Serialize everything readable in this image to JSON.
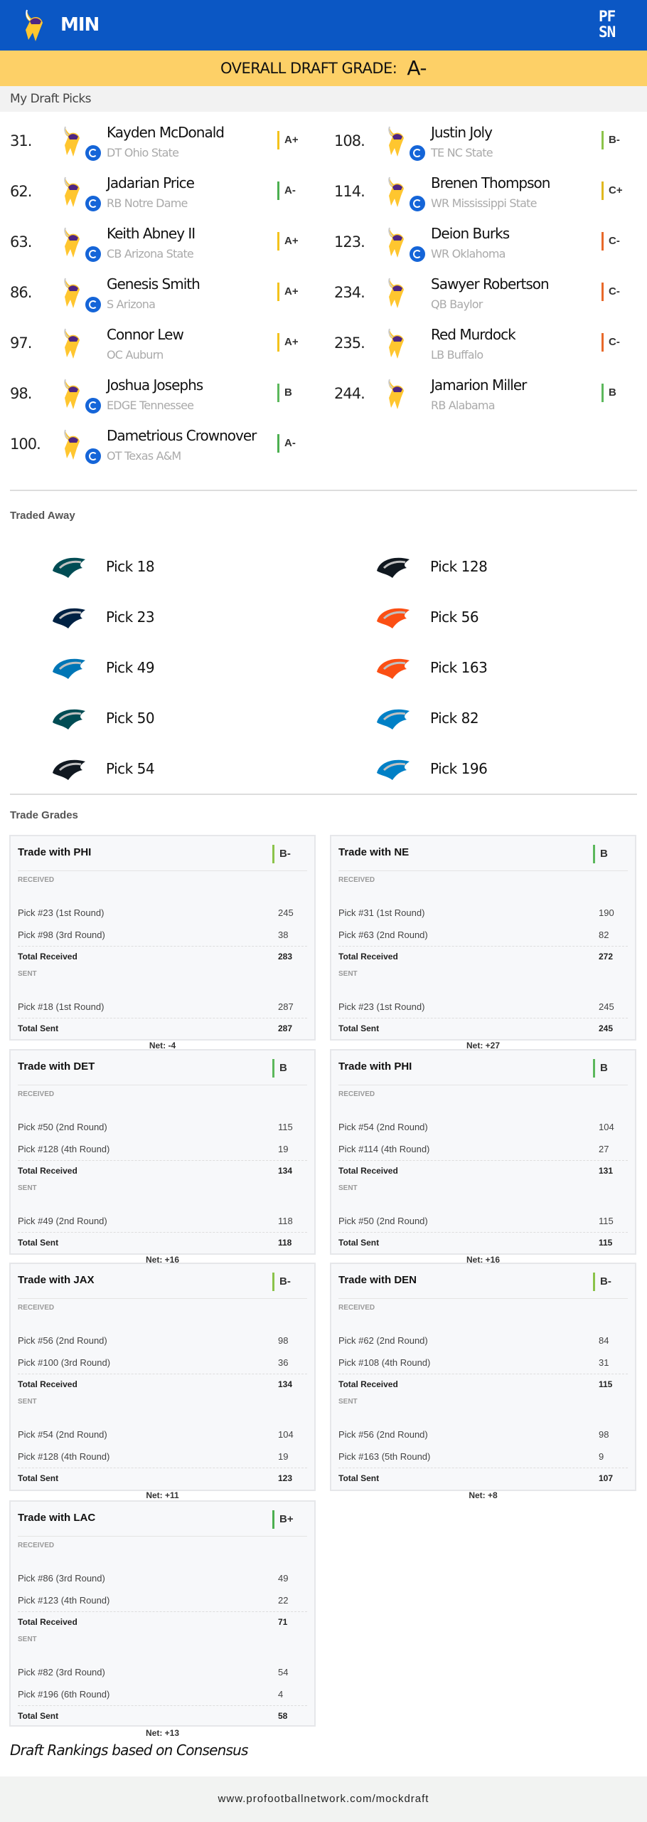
{
  "header": {
    "team": "MIN",
    "brand": "PFSN",
    "team_logo": "vikings-logo-icon"
  },
  "overall": {
    "label": "OVERALL DRAFT GRADE:",
    "grade": "A-"
  },
  "picks_section": {
    "title": "My Draft Picks"
  },
  "grade_colors": {
    "A+": "#f4c21b",
    "A-": "#4caf50",
    "B": "#5cb85c",
    "B-": "#8bc34a",
    "B+": "#4caf50",
    "C+": "#e0b81f",
    "C-": "#e8692a"
  },
  "picks": [
    {
      "num": "31.",
      "name": "Kayden McDonald",
      "sub": "DT Ohio State",
      "grade": "A+",
      "traded": true
    },
    {
      "num": "62.",
      "name": "Jadarian Price",
      "sub": "RB Notre Dame",
      "grade": "A-",
      "traded": true
    },
    {
      "num": "63.",
      "name": "Keith Abney II",
      "sub": "CB Arizona State",
      "grade": "A+",
      "traded": true
    },
    {
      "num": "86.",
      "name": "Genesis Smith",
      "sub": "S Arizona",
      "grade": "A+",
      "traded": true
    },
    {
      "num": "97.",
      "name": "Connor Lew",
      "sub": "OC Auburn",
      "grade": "A+",
      "traded": false
    },
    {
      "num": "98.",
      "name": "Joshua Josephs",
      "sub": "EDGE Tennessee",
      "grade": "B",
      "traded": true
    },
    {
      "num": "100.",
      "name": "Dametrious Crownover",
      "sub": "OT Texas A&M",
      "grade": "A-",
      "traded": true
    },
    {
      "num": "108.",
      "name": "Justin Joly",
      "sub": "TE NC State",
      "grade": "B-",
      "traded": true
    },
    {
      "num": "114.",
      "name": "Brenen Thompson",
      "sub": "WR Mississippi State",
      "grade": "C+",
      "traded": true
    },
    {
      "num": "123.",
      "name": "Deion Burks",
      "sub": "WR Oklahoma",
      "grade": "C-",
      "traded": true
    },
    {
      "num": "234.",
      "name": "Sawyer Robertson",
      "sub": "QB Baylor",
      "grade": "C-",
      "traded": false
    },
    {
      "num": "235.",
      "name": "Red Murdock",
      "sub": "LB Buffalo",
      "grade": "C-",
      "traded": false
    },
    {
      "num": "244.",
      "name": "Jamarion Miller",
      "sub": "RB Alabama",
      "grade": "B",
      "traded": false
    }
  ],
  "traded_section": {
    "title": "Traded Away"
  },
  "traded_away": [
    {
      "team": "PHI",
      "label": "Pick 18",
      "color": "#004c54"
    },
    {
      "team": "NE",
      "label": "Pick 23",
      "color": "#002244"
    },
    {
      "team": "DET",
      "label": "Pick 49",
      "color": "#0076b6"
    },
    {
      "team": "PHI",
      "label": "Pick 50",
      "color": "#004c54"
    },
    {
      "team": "JAX",
      "label": "Pick 54",
      "color": "#101820"
    },
    {
      "team": "JAX",
      "label": "Pick 128",
      "color": "#101820"
    },
    {
      "team": "DEN",
      "label": "Pick 56",
      "color": "#fb4f14"
    },
    {
      "team": "DEN",
      "label": "Pick 163",
      "color": "#fb4f14"
    },
    {
      "team": "LAC",
      "label": "Pick 82",
      "color": "#0080c6"
    },
    {
      "team": "LAC",
      "label": "Pick 196",
      "color": "#0080c6"
    }
  ],
  "trades_section": {
    "title": "Trade Grades"
  },
  "trade_labels": {
    "received": "RECEIVED",
    "sent": "SENT",
    "total_received": "Total Received",
    "total_sent": "Total Sent"
  },
  "trades": [
    {
      "title": "Trade with PHI",
      "grade": "B-",
      "received": [
        [
          "Pick #23 (1st Round)",
          "245"
        ],
        [
          "Pick #98 (3rd Round)",
          "38"
        ]
      ],
      "total_received": "283",
      "sent": [
        [
          "Pick #18 (1st Round)",
          "287"
        ]
      ],
      "total_sent": "287",
      "net": "Net: -4"
    },
    {
      "title": "Trade with NE",
      "grade": "B",
      "received": [
        [
          "Pick #31 (1st Round)",
          "190"
        ],
        [
          "Pick #63 (2nd Round)",
          "82"
        ]
      ],
      "total_received": "272",
      "sent": [
        [
          "Pick #23 (1st Round)",
          "245"
        ]
      ],
      "total_sent": "245",
      "net": "Net: +27"
    },
    {
      "title": "Trade with DET",
      "grade": "B",
      "received": [
        [
          "Pick #50 (2nd Round)",
          "115"
        ],
        [
          "Pick #128 (4th Round)",
          "19"
        ]
      ],
      "total_received": "134",
      "sent": [
        [
          "Pick #49 (2nd Round)",
          "118"
        ]
      ],
      "total_sent": "118",
      "net": "Net: +16"
    },
    {
      "title": "Trade with PHI",
      "grade": "B",
      "received": [
        [
          "Pick #54 (2nd Round)",
          "104"
        ],
        [
          "Pick #114 (4th Round)",
          "27"
        ]
      ],
      "total_received": "131",
      "sent": [
        [
          "Pick #50 (2nd Round)",
          "115"
        ]
      ],
      "total_sent": "115",
      "net": "Net: +16"
    },
    {
      "title": "Trade with JAX",
      "grade": "B-",
      "received": [
        [
          "Pick #56 (2nd Round)",
          "98"
        ],
        [
          "Pick #100 (3rd Round)",
          "36"
        ]
      ],
      "total_received": "134",
      "sent": [
        [
          "Pick #54 (2nd Round)",
          "104"
        ],
        [
          "Pick #128 (4th Round)",
          "19"
        ]
      ],
      "total_sent": "123",
      "net": "Net: +11"
    },
    {
      "title": "Trade with DEN",
      "grade": "B-",
      "received": [
        [
          "Pick #62 (2nd Round)",
          "84"
        ],
        [
          "Pick #108 (4th Round)",
          "31"
        ]
      ],
      "total_received": "115",
      "sent": [
        [
          "Pick #56 (2nd Round)",
          "98"
        ],
        [
          "Pick #163 (5th Round)",
          "9"
        ]
      ],
      "total_sent": "107",
      "net": "Net: +8"
    },
    {
      "title": "Trade with LAC",
      "grade": "B+",
      "received": [
        [
          "Pick #86 (3rd Round)",
          "49"
        ],
        [
          "Pick #123 (4th Round)",
          "22"
        ]
      ],
      "total_received": "71",
      "sent": [
        [
          "Pick #82 (3rd Round)",
          "54"
        ],
        [
          "Pick #196 (6th Round)",
          "4"
        ]
      ],
      "total_sent": "58",
      "net": "Net: +13"
    }
  ],
  "footnote": "Draft Rankings based on Consensus",
  "footer": {
    "url": "www.profootballnetwork.com/mockdraft"
  }
}
